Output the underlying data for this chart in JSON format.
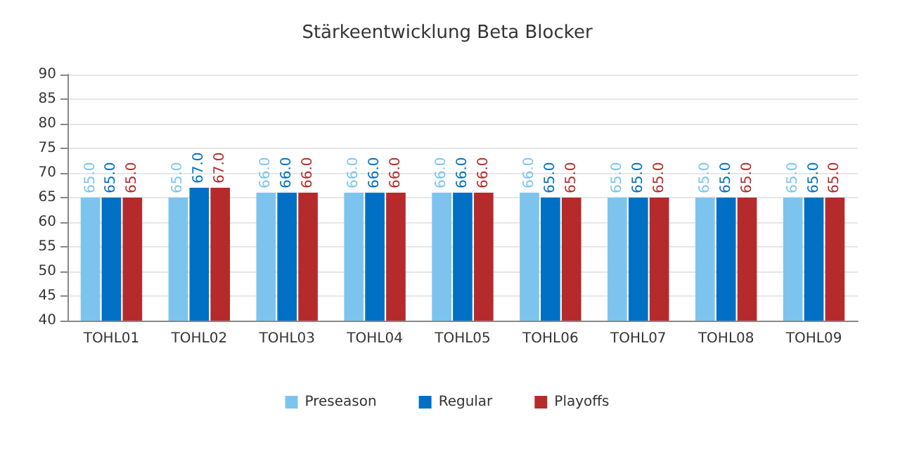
{
  "chart_data": {
    "type": "bar",
    "title": "Stärkeentwicklung Beta Blocker",
    "categories": [
      "TOHL01",
      "TOHL02",
      "TOHL03",
      "TOHL04",
      "TOHL05",
      "TOHL06",
      "TOHL07",
      "TOHL08",
      "TOHL09"
    ],
    "series": [
      {
        "name": "Preseason",
        "color": "#7cc4ee",
        "values": [
          65,
          65,
          66,
          66,
          66,
          66,
          65,
          65,
          65
        ],
        "value_labels": [
          "65.0",
          "65.0",
          "66.0",
          "66.0",
          "66.0",
          "66.0",
          "65.0",
          "65.0",
          "65.0"
        ]
      },
      {
        "name": "Regular",
        "color": "#0070c4",
        "values": [
          65,
          67,
          66,
          66,
          66,
          65,
          65,
          65,
          65
        ],
        "value_labels": [
          "65.0",
          "67.0",
          "66.0",
          "66.0",
          "66.0",
          "65.0",
          "65.0",
          "65.0",
          "65.0"
        ]
      },
      {
        "name": "Playoffs",
        "color": "#b52b2b",
        "values": [
          65,
          67,
          66,
          66,
          66,
          65,
          65,
          65,
          65
        ],
        "value_labels": [
          "65.0",
          "67.0",
          "66.0",
          "66.0",
          "66.0",
          "65.0",
          "65.0",
          "65.0",
          "65.0"
        ]
      }
    ],
    "ylim": [
      40,
      90
    ],
    "yticks": [
      40,
      45,
      50,
      55,
      60,
      65,
      70,
      75,
      80,
      85,
      90
    ],
    "grid": "y",
    "legend": "bottom"
  }
}
